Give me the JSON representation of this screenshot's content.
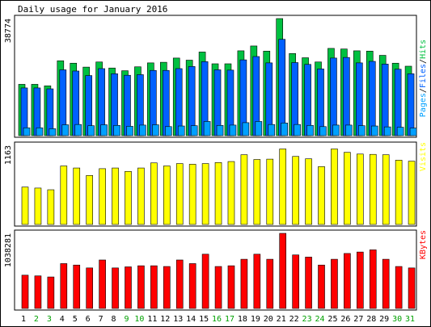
{
  "title": "Daily usage for January 2016",
  "colors": {
    "frame": "#000000",
    "background": "#ffffff",
    "weekday_label": "#000000",
    "weekend_label": "#00a000",
    "pages": "#00a0ff",
    "files": "#0060ff",
    "hits": "#00c040",
    "visits": "#ffff00",
    "kbytes": "#ff0000"
  },
  "chart_data": [
    {
      "type": "bar",
      "title": "Daily usage for January 2016",
      "legend": [
        "Pages",
        "Files",
        "Hits"
      ],
      "legend_placement": "right",
      "ymax_label": "38774",
      "ylim": [
        0,
        38774
      ],
      "categories": [
        "1",
        "2",
        "3",
        "4",
        "5",
        "6",
        "7",
        "8",
        "9",
        "10",
        "11",
        "12",
        "13",
        "14",
        "15",
        "16",
        "17",
        "18",
        "19",
        "20",
        "21",
        "22",
        "23",
        "24",
        "25",
        "26",
        "27",
        "28",
        "29",
        "30",
        "31"
      ],
      "weekend_days": [
        "2",
        "3",
        "9",
        "10",
        "16",
        "17",
        "23",
        "24",
        "30",
        "31"
      ],
      "series": [
        {
          "name": "Hits",
          "values": [
            17000,
            17000,
            16500,
            24800,
            24000,
            22700,
            24400,
            22400,
            21500,
            22800,
            24100,
            24300,
            25700,
            25000,
            27700,
            23800,
            23800,
            28100,
            29700,
            28000,
            38774,
            27200,
            25800,
            24400,
            28900,
            28700,
            28100,
            28000,
            26600,
            24000,
            23000
          ]
        },
        {
          "name": "Files",
          "values": [
            15800,
            15800,
            15500,
            21800,
            21400,
            19900,
            22200,
            20500,
            20000,
            20200,
            21600,
            21600,
            22200,
            22900,
            24500,
            21800,
            21700,
            25100,
            26200,
            24100,
            31900,
            24200,
            23600,
            22100,
            25700,
            25900,
            24100,
            24600,
            23700,
            22000,
            20500
          ]
        },
        {
          "name": "Pages",
          "values": [
            2600,
            2600,
            2300,
            3600,
            3700,
            3300,
            3600,
            3400,
            3100,
            3500,
            3600,
            3000,
            3200,
            3300,
            4700,
            3400,
            3500,
            4300,
            4700,
            3700,
            4200,
            3700,
            3400,
            3000,
            3500,
            3500,
            3300,
            3200,
            2900,
            2800,
            2500
          ]
        }
      ]
    },
    {
      "type": "bar",
      "legend": [
        "Visits"
      ],
      "legend_placement": "right",
      "ymax_label": "1163",
      "ylim": [
        0,
        1163
      ],
      "categories": [
        "1",
        "2",
        "3",
        "4",
        "5",
        "6",
        "7",
        "8",
        "9",
        "10",
        "11",
        "12",
        "13",
        "14",
        "15",
        "16",
        "17",
        "18",
        "19",
        "20",
        "21",
        "22",
        "23",
        "24",
        "25",
        "26",
        "27",
        "28",
        "29",
        "30",
        "31"
      ],
      "series": [
        {
          "name": "Visits",
          "values": [
            550,
            535,
            510,
            860,
            830,
            720,
            820,
            830,
            780,
            830,
            905,
            860,
            895,
            885,
            895,
            910,
            925,
            1025,
            955,
            960,
            1110,
            1000,
            965,
            850,
            1110,
            1060,
            1035,
            1030,
            1025,
            945,
            930
          ]
        }
      ]
    },
    {
      "type": "bar",
      "legend": [
        "KBytes"
      ],
      "legend_placement": "right",
      "ymax_label": "1038281",
      "ylim": [
        0,
        1038281
      ],
      "categories": [
        "1",
        "2",
        "3",
        "4",
        "5",
        "6",
        "7",
        "8",
        "9",
        "10",
        "11",
        "12",
        "13",
        "14",
        "15",
        "16",
        "17",
        "18",
        "19",
        "20",
        "21",
        "22",
        "23",
        "24",
        "25",
        "26",
        "27",
        "28",
        "29",
        "30",
        "31"
      ],
      "series": [
        {
          "name": "KBytes",
          "values": [
            460000,
            450000,
            435000,
            620000,
            600000,
            560000,
            670000,
            560000,
            575000,
            590000,
            590000,
            580000,
            670000,
            620000,
            750000,
            580000,
            590000,
            680000,
            750000,
            680000,
            1038281,
            740000,
            710000,
            600000,
            680000,
            760000,
            780000,
            810000,
            680000,
            580000,
            560000
          ]
        }
      ]
    }
  ]
}
